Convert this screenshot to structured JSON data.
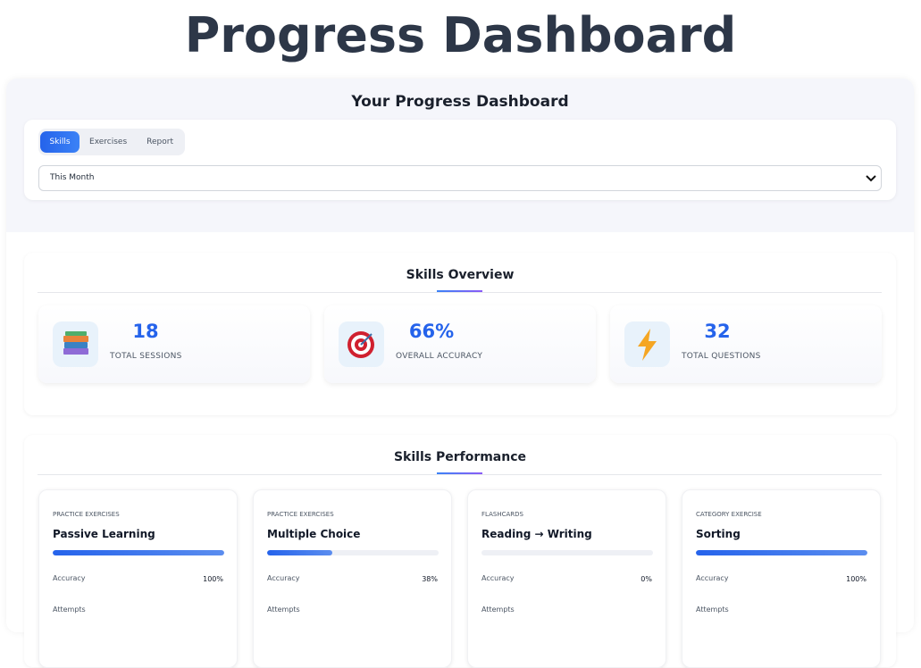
{
  "header": {
    "title": "Progress Dashboard"
  },
  "panel": {
    "title": "Your Progress Dashboard",
    "tabs": [
      "Skills",
      "Exercises",
      "Report"
    ],
    "period": "This Month"
  },
  "overview": {
    "title": "Skills Overview",
    "stats": [
      {
        "value": "18",
        "label": "TOTAL SESSIONS"
      },
      {
        "value": "66%",
        "label": "OVERALL ACCURACY"
      },
      {
        "value": "32",
        "label": "TOTAL QUESTIONS"
      }
    ]
  },
  "performance": {
    "title": "Skills Performance",
    "cards": [
      {
        "category": "PRACTICE EXERCISES",
        "name": "Passive Learning",
        "accuracy_label": "Accuracy",
        "accuracy": {
          "value": 100,
          "label": "100%"
        },
        "attempts_label": "Attempts"
      },
      {
        "category": "PRACTICE EXERCISES",
        "name": "Multiple Choice",
        "accuracy_label": "Accuracy",
        "accuracy": {
          "value": 38,
          "label": "38%"
        },
        "attempts_label": "Attempts"
      },
      {
        "category": "FLASHCARDS",
        "name": "Reading → Writing",
        "accuracy_label": "Accuracy",
        "accuracy": {
          "value": 0,
          "label": "0%"
        },
        "attempts_label": "Attempts"
      },
      {
        "category": "CATEGORY EXERCISE",
        "name": "Sorting",
        "accuracy_label": "Accuracy",
        "accuracy": {
          "value": 100,
          "label": "100%"
        },
        "attempts_label": "Attempts"
      }
    ]
  }
}
